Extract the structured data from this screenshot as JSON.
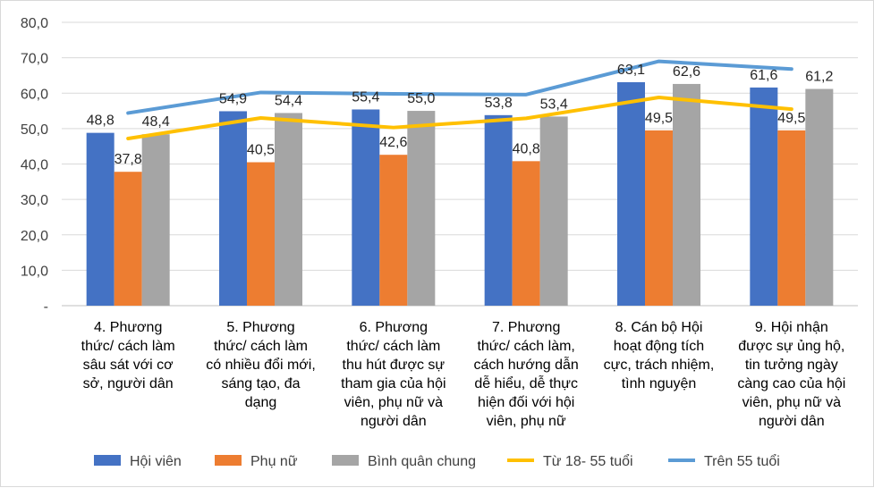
{
  "chart_data": {
    "type": "bar",
    "title": "",
    "xlabel": "",
    "ylabel": "",
    "ylim": [
      0,
      80
    ],
    "yticks": [
      "-",
      "10,0",
      "20,0",
      "30,0",
      "40,0",
      "50,0",
      "60,0",
      "70,0",
      "80,0"
    ],
    "grid": true,
    "legend_position": "bottom",
    "categories": [
      [
        "4.      Phương",
        "thức/ cách làm",
        "sâu sát với cơ",
        "sở, người dân"
      ],
      [
        "5.      Phương",
        "thức/ cách làm",
        "có nhiều đổi mới,",
        "sáng tạo, đa",
        "dạng"
      ],
      [
        "6.      Phương",
        "thức/ cách làm",
        "thu hút được sự",
        "tham gia của hội",
        "viên, phụ nữ và",
        "người dân"
      ],
      [
        "7.      Phương",
        "thức/ cách làm,",
        "cách hướng dẫn",
        "dễ hiểu, dễ thực",
        "hiện đối với hội",
        "viên, phụ nữ"
      ],
      [
        "8.    Cán bộ Hội",
        "hoạt động tích",
        "cực, trách nhiệm,",
        "tình nguyện"
      ],
      [
        "9.      Hội nhận",
        "được sự ủng hộ,",
        "tin tưởng ngày",
        "càng cao của hội",
        "viên, phụ nữ và",
        "người dân"
      ]
    ],
    "series": [
      {
        "name": "Hội viên",
        "kind": "bar",
        "color": "#4472C4",
        "values": [
          48.8,
          54.9,
          55.4,
          53.8,
          63.1,
          61.6
        ],
        "labels": [
          "48,8",
          "54,9",
          "55,4",
          "53,8",
          "63,1",
          "61,6"
        ]
      },
      {
        "name": "Phụ nữ",
        "kind": "bar",
        "color": "#ED7D31",
        "values": [
          37.8,
          40.5,
          42.6,
          40.8,
          49.5,
          49.5
        ],
        "labels": [
          "37,8",
          "40,5",
          "42,6",
          "40,8",
          "49,5",
          "49,5"
        ]
      },
      {
        "name": "Bình quân chung",
        "kind": "bar",
        "color": "#A5A5A5",
        "values": [
          48.4,
          54.4,
          55.0,
          53.4,
          62.6,
          61.2
        ],
        "labels": [
          "48,4",
          "54,4",
          "55,0",
          "53,4",
          "62,6",
          "61,2"
        ]
      },
      {
        "name": "Từ 18- 55 tuổi",
        "kind": "line",
        "color": "#FFC000",
        "values": [
          47.2,
          53.0,
          50.3,
          52.9,
          58.8,
          55.5
        ]
      },
      {
        "name": "Trên 55 tuổi",
        "kind": "line",
        "color": "#5B9BD5",
        "values": [
          54.4,
          60.2,
          59.8,
          59.6,
          69.0,
          66.8
        ]
      }
    ]
  }
}
